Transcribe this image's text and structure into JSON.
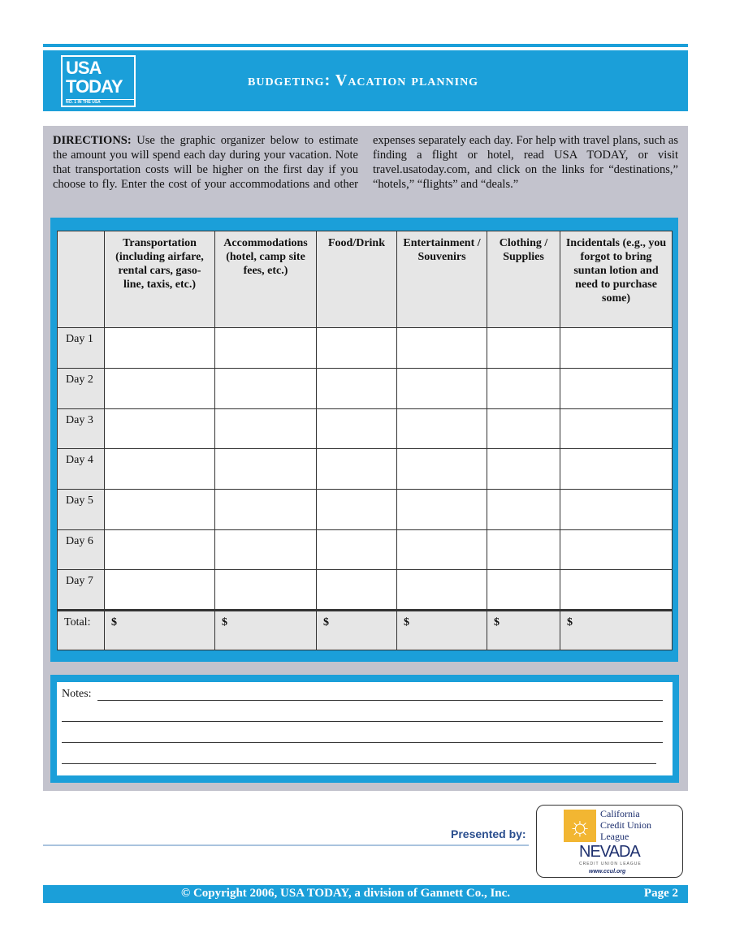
{
  "header": {
    "logo_text": [
      "USA",
      "TODAY"
    ],
    "logo_tagline": "NO. 1 IN THE USA",
    "title_prefix": "budgeting: ",
    "title_main": "Vacation planning"
  },
  "directions": {
    "label": "DIRECTIONS:",
    "text": " Use the graphic organizer below to estimate the amount you will spend each day during your vacation. Note that transportation costs will be higher on the first day if you choose to fly. Enter the cost of your accommodations and other expenses separately each day. For help with travel plans, such as finding a flight or hotel, read USA TODAY, or visit travel.usatoday.com, and click on the links for “destinations,” “hotels,” “flights” and “deals.”"
  },
  "table": {
    "columns": [
      "Transportation (including airfare, rental cars, gaso-line, taxis, etc.)",
      "Accommodations (hotel, camp site fees, etc.)",
      "Food/Drink",
      "Entertainment / Souvenirs",
      "Clothing / Supplies",
      "Incidentals (e.g., you forgot to bring suntan lotion and need to purchase some)"
    ],
    "rows": [
      "Day 1",
      "Day 2",
      "Day 3",
      "Day 4",
      "Day 5",
      "Day 6",
      "Day 7"
    ],
    "total_label": "Total:",
    "currency": "$"
  },
  "notes": {
    "label": "Notes:"
  },
  "sponsor": {
    "presented_by": "Presented by:",
    "ccul": [
      "California",
      "Credit Union",
      "League"
    ],
    "nevada": "NEVADA",
    "nevada_sub": "CREDIT UNION LEAGUE",
    "website": "www.ccul.org"
  },
  "footer": {
    "copyright": "© Copyright 2006, USA TODAY, a division of Gannett Co., Inc.",
    "page": "Page 2"
  },
  "colors": {
    "accent": "#1b9fd9",
    "panel": "#c3c3cd",
    "cell_header": "#e6e6e6"
  }
}
